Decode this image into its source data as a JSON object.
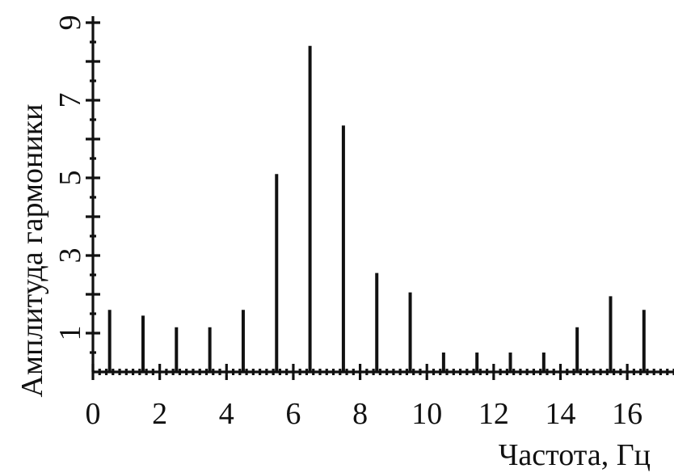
{
  "chart_data": {
    "type": "bar",
    "title": "",
    "xlabel": "Частота, Гц",
    "ylabel": "Амплитуда гармоники",
    "xlim": [
      0,
      17.4
    ],
    "ylim": [
      0,
      9
    ],
    "x_ticks": [
      0,
      2,
      4,
      6,
      8,
      10,
      12,
      14,
      16
    ],
    "x_tick_labels": [
      "0",
      "2",
      "4",
      "6",
      "8",
      "10",
      "12",
      "14",
      "16"
    ],
    "x_minor_step": 0.2,
    "y_ticks": [
      1,
      2,
      3,
      4,
      5,
      6,
      7,
      8,
      9
    ],
    "y_tick_labels": [
      "1",
      "",
      "3",
      "",
      "5",
      "",
      "7",
      "",
      "9"
    ],
    "y_minor_step": 0.5,
    "grid": false,
    "legend": "none",
    "bar_color": "#111111",
    "x": [
      0.5,
      1.5,
      2.5,
      3.5,
      4.5,
      5.5,
      6.5,
      7.5,
      8.5,
      9.5,
      10.5,
      11.5,
      12.5,
      13.5,
      14.5,
      15.5,
      16.5
    ],
    "values": [
      1.6,
      1.45,
      1.15,
      1.15,
      1.6,
      5.1,
      8.4,
      6.35,
      2.55,
      2.05,
      0.5,
      0.5,
      0.5,
      0.5,
      1.15,
      1.95,
      1.6
    ]
  }
}
